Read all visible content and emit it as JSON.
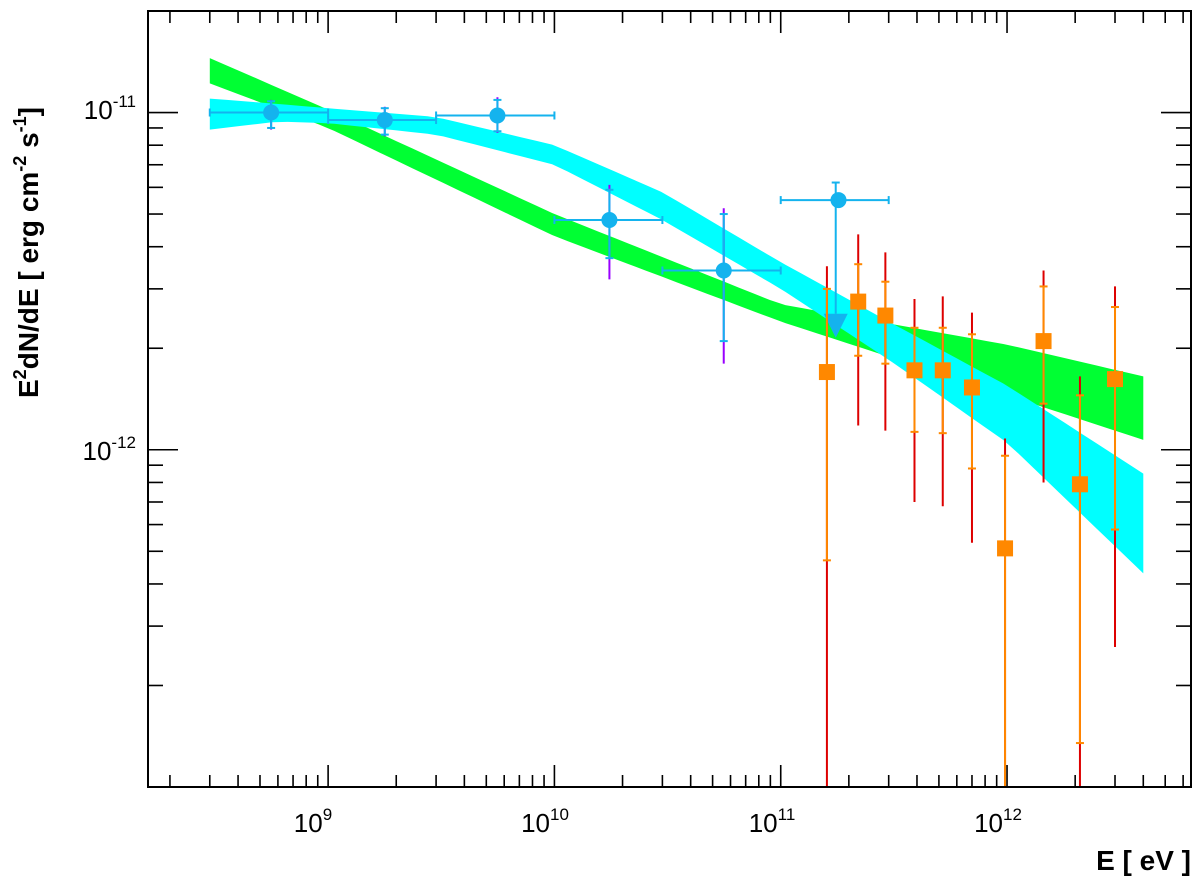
{
  "chart_data": {
    "type": "scatter",
    "xlabel": "E [ eV ]",
    "ylabel_parts": [
      "E",
      "2",
      "dN/dE [ erg cm",
      "-2",
      " s",
      "-1",
      "]"
    ],
    "x_scale": "log",
    "y_scale": "log",
    "xlim": [
      160000000.0,
      6500000000000.0
    ],
    "ylim": [
      1e-13,
      2e-11
    ],
    "x_tick_labels": [
      {
        "base": "10",
        "exp": "9",
        "value": 1000000000.0
      },
      {
        "base": "10",
        "exp": "10",
        "value": 10000000000.0
      },
      {
        "base": "10",
        "exp": "11",
        "value": 100000000000.0
      },
      {
        "base": "10",
        "exp": "12",
        "value": 1000000000000.0
      }
    ],
    "y_tick_labels": [
      {
        "base": "10",
        "exp": "-11",
        "value": 1e-11
      },
      {
        "base": "10",
        "exp": "-12",
        "value": 1e-12
      }
    ],
    "colors": {
      "green_band": "#00ff33",
      "cyan_band": "#00ffff",
      "circle_marker": "#14b3ee",
      "circle_stat_err": "#9900ff",
      "square_marker": "#ff8800",
      "square_sys_err": "#dd0000"
    },
    "bands": [
      {
        "color_key": "green_band",
        "x": [
          300000000.0,
          1000000000.0,
          10000000000.0,
          100000000000.0,
          1000000000000.0,
          4000000000000.0
        ],
        "upper": [
          1.45e-11,
          1.02e-11,
          5e-12,
          2.7e-12,
          2.05e-12,
          1.65e-12
        ],
        "lower": [
          1.22e-11,
          9e-12,
          4.3e-12,
          2.4e-12,
          1.45e-12,
          1.07e-12
        ]
      },
      {
        "color_key": "cyan_band",
        "x": [
          300000000.0,
          600000000.0,
          1000000000.0,
          3000000000.0,
          10000000000.0,
          30000000000.0,
          100000000000.0,
          300000000000.0,
          1000000000000.0,
          4000000000000.0
        ],
        "upper": [
          1.1e-11,
          1.06e-11,
          1.03e-11,
          9.7e-12,
          8e-12,
          5.8e-12,
          3.6e-12,
          2.4e-12,
          1.55e-12,
          8.5e-13
        ],
        "lower": [
          8.9e-12,
          9.4e-12,
          9.3e-12,
          8.6e-12,
          7e-12,
          4.8e-12,
          3e-12,
          1.85e-12,
          1.05e-12,
          4.3e-13
        ]
      }
    ],
    "circle_points": [
      {
        "x": 560000000.0,
        "y": 1e-11,
        "xlo": 300000000.0,
        "xhi": 1000000000.0,
        "stat": [
          9e-12,
          1.08e-11
        ],
        "tot": [
          8.9e-12,
          1.09e-11
        ]
      },
      {
        "x": 1780000000.0,
        "y": 9.5e-12,
        "xlo": 1000000000.0,
        "xhi": 3000000000.0,
        "stat": [
          8.6e-12,
          1.03e-11
        ],
        "tot": [
          8.5e-12,
          1.04e-11
        ]
      },
      {
        "x": 5600000000.0,
        "y": 9.8e-12,
        "xlo": 3000000000.0,
        "xhi": 10000000000.0,
        "stat": [
          8.8e-12,
          1.09e-11
        ],
        "tot": [
          8.7e-12,
          1.11e-11
        ]
      },
      {
        "x": 17500000000.0,
        "y": 4.8e-12,
        "xlo": 10000000000.0,
        "xhi": 30000000000.0,
        "stat": [
          3.7e-12,
          5.9e-12
        ],
        "tot": [
          3.2e-12,
          6.1e-12
        ]
      },
      {
        "x": 56000000000.0,
        "y": 3.4e-12,
        "xlo": 30000000000.0,
        "xhi": 100000000000.0,
        "stat": [
          2.1e-12,
          5e-12
        ],
        "tot": [
          1.8e-12,
          5.2e-12
        ]
      },
      {
        "x": 180000000000.0,
        "y": 5.5e-12,
        "xlo": 100000000000.0,
        "xhi": 300000000000.0,
        "stat": null,
        "tot": null
      }
    ],
    "upper_limit": {
      "x": 175000000000.0,
      "top": 6.2e-12,
      "arrow_y": 2.3e-12
    },
    "square_points": [
      {
        "x": 160000000000.0,
        "y": 1.7e-12,
        "stat": [
          4.7e-13,
          3e-12
        ],
        "sys": [
          1e-13,
          3.5e-12
        ]
      },
      {
        "x": 220000000000.0,
        "y": 2.75e-12,
        "stat": [
          1.9e-12,
          3.55e-12
        ],
        "sys": [
          1.18e-12,
          4.35e-12
        ]
      },
      {
        "x": 290000000000.0,
        "y": 2.5e-12,
        "stat": [
          1.8e-12,
          3.15e-12
        ],
        "sys": [
          1.14e-12,
          3.85e-12
        ]
      },
      {
        "x": 390000000000.0,
        "y": 1.72e-12,
        "stat": [
          1.13e-12,
          2.3e-12
        ],
        "sys": [
          7e-13,
          2.8e-12
        ]
      },
      {
        "x": 520000000000.0,
        "y": 1.72e-12,
        "stat": [
          1.12e-12,
          2.3e-12
        ],
        "sys": [
          6.8e-13,
          2.85e-12
        ]
      },
      {
        "x": 700000000000.0,
        "y": 1.53e-12,
        "stat": [
          8.8e-13,
          2.2e-12
        ],
        "sys": [
          5.3e-13,
          2.55e-12
        ]
      },
      {
        "x": 980000000000.0,
        "y": 5.1e-13,
        "stat": [
          1e-13,
          9.6e-13
        ],
        "sys": [
          1e-13,
          1.08e-12
        ]
      },
      {
        "x": 1450000000000.0,
        "y": 2.1e-12,
        "stat": [
          1.37e-12,
          3.05e-12
        ],
        "sys": [
          8e-13,
          3.4e-12
        ]
      },
      {
        "x": 2100000000000.0,
        "y": 7.9e-13,
        "stat": [
          1.35e-13,
          1.45e-12
        ],
        "sys": [
          1e-13,
          1.65e-12
        ]
      },
      {
        "x": 3000000000000.0,
        "y": 1.62e-12,
        "stat": [
          5.8e-13,
          2.65e-12
        ],
        "sys": [
          2.6e-13,
          3.05e-12
        ]
      }
    ]
  }
}
